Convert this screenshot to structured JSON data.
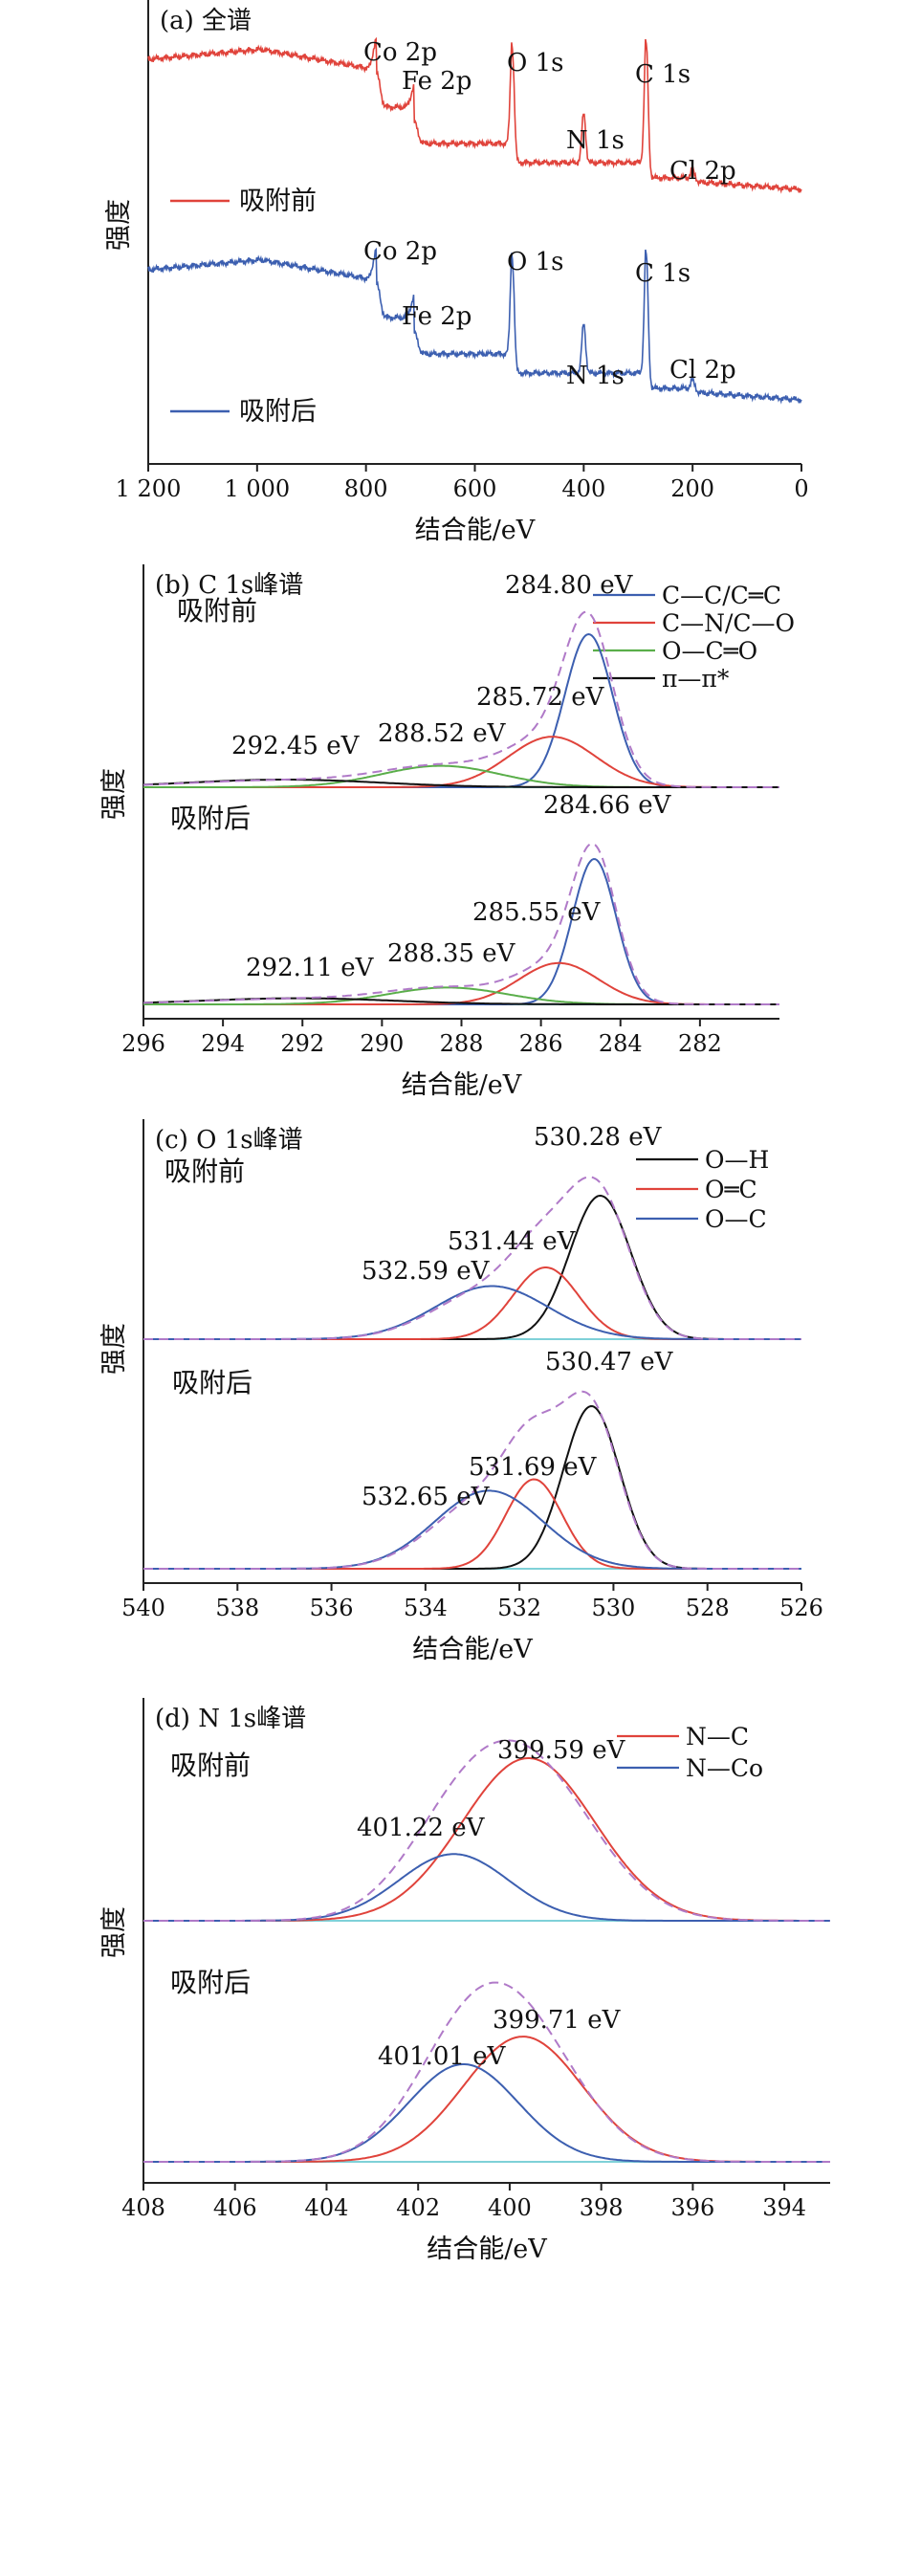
{
  "colors": {
    "red": "#e0433b",
    "blue": "#3c5fb0",
    "green": "#5aae4a",
    "black": "#111111",
    "envelope": "#b07ac8",
    "baseline": "#7fd1d8"
  },
  "chart_data": [
    {
      "id": "a",
      "type": "line",
      "title": "(a)  全谱",
      "xlabel": "结合能/eV",
      "ylabel": "强度",
      "xlim": [
        1200,
        0
      ],
      "xticks": [
        "1 200",
        "1 000",
        "800",
        "600",
        "400",
        "200",
        "0"
      ],
      "xtick_values": [
        1200,
        1000,
        800,
        600,
        400,
        200,
        0
      ],
      "series": [
        {
          "name": "吸附前",
          "color": "red",
          "peaks": [
            {
              "label": "Co 2p",
              "x": 780
            },
            {
              "label": "Fe 2p",
              "x": 711
            },
            {
              "label": "O 1s",
              "x": 531
            },
            {
              "label": "N 1s",
              "x": 400
            },
            {
              "label": "C 1s",
              "x": 285
            },
            {
              "label": "Cl 2p",
              "x": 199
            }
          ]
        },
        {
          "name": "吸附后",
          "color": "blue",
          "peaks": [
            {
              "label": "Co 2p",
              "x": 780
            },
            {
              "label": "Fe 2p",
              "x": 711
            },
            {
              "label": "O 1s",
              "x": 531
            },
            {
              "label": "N 1s",
              "x": 400
            },
            {
              "label": "C 1s",
              "x": 285
            },
            {
              "label": "Cl 2p",
              "x": 199
            }
          ]
        }
      ]
    },
    {
      "id": "b",
      "type": "line",
      "title": "(b)  C 1s峰谱",
      "xlabel": "结合能/eV",
      "ylabel": "强度",
      "xlim": [
        296,
        280
      ],
      "xticks": [
        "296",
        "294",
        "292",
        "290",
        "288",
        "286",
        "284",
        "282"
      ],
      "xtick_values": [
        296,
        294,
        292,
        290,
        288,
        286,
        284,
        282
      ],
      "legend": [
        {
          "label": "C—C/C═C",
          "color": "blue"
        },
        {
          "label": "C—N/C—O",
          "color": "red"
        },
        {
          "label": "O—C═O",
          "color": "green"
        },
        {
          "label": "π—π*",
          "color": "black"
        }
      ],
      "panels": [
        {
          "label": "吸附前",
          "components": [
            {
              "component": "C—C/C═C",
              "x": 284.8,
              "height": 1.0,
              "width": 0.6
            },
            {
              "component": "C—N/C—O",
              "x": 285.72,
              "height": 0.33,
              "width": 1.1
            },
            {
              "component": "O—C═O",
              "x": 288.52,
              "height": 0.14,
              "width": 1.5
            },
            {
              "component": "π—π*",
              "x": 292.45,
              "height": 0.05,
              "width": 2.4
            }
          ],
          "annotations": [
            "284.80 eV",
            "285.72 eV",
            "288.52 eV",
            "292.45 eV"
          ]
        },
        {
          "label": "吸附后",
          "components": [
            {
              "component": "C—C/C═C",
              "x": 284.66,
              "height": 0.95,
              "width": 0.55
            },
            {
              "component": "C—N/C—O",
              "x": 285.55,
              "height": 0.27,
              "width": 1.0
            },
            {
              "component": "O—C═O",
              "x": 288.35,
              "height": 0.11,
              "width": 1.5
            },
            {
              "component": "π—π*",
              "x": 292.11,
              "height": 0.04,
              "width": 2.4
            }
          ],
          "annotations": [
            "284.66 eV",
            "285.55 eV",
            "288.35 eV",
            "292.11 eV"
          ]
        }
      ]
    },
    {
      "id": "c",
      "type": "line",
      "title": "(c)  O 1s峰谱",
      "xlabel": "结合能/eV",
      "ylabel": "强度",
      "xlim": [
        540,
        526
      ],
      "xticks": [
        "540",
        "538",
        "536",
        "534",
        "532",
        "530",
        "528",
        "526"
      ],
      "xtick_values": [
        540,
        538,
        536,
        534,
        532,
        530,
        528,
        526
      ],
      "legend": [
        {
          "label": "O—H",
          "color": "black"
        },
        {
          "label": "O═C",
          "color": "red"
        },
        {
          "label": "O—C",
          "color": "blue"
        }
      ],
      "panels": [
        {
          "label": "吸附前",
          "components": [
            {
              "component": "O—H",
              "x": 530.28,
              "height": 1.0,
              "width": 0.65
            },
            {
              "component": "O═C",
              "x": 531.44,
              "height": 0.5,
              "width": 0.7
            },
            {
              "component": "O—C",
              "x": 532.59,
              "height": 0.37,
              "width": 1.2
            }
          ],
          "annotations": [
            "530.28 eV",
            "531.44 eV",
            "532.59 eV"
          ]
        },
        {
          "label": "吸附后",
          "components": [
            {
              "component": "O—H",
              "x": 530.47,
              "height": 1.0,
              "width": 0.6
            },
            {
              "component": "O═C",
              "x": 531.69,
              "height": 0.55,
              "width": 0.6
            },
            {
              "component": "O—C",
              "x": 532.65,
              "height": 0.48,
              "width": 1.15
            }
          ],
          "annotations": [
            "530.47 eV",
            "531.69 eV",
            "532.65 eV"
          ]
        }
      ]
    },
    {
      "id": "d",
      "type": "line",
      "title": "(d)  N 1s峰谱",
      "xlabel": "结合能/eV",
      "ylabel": "强度",
      "xlim": [
        408,
        393
      ],
      "xticks": [
        "408",
        "406",
        "404",
        "402",
        "400",
        "398",
        "396",
        "394"
      ],
      "xtick_values": [
        408,
        406,
        404,
        402,
        400,
        398,
        396,
        394
      ],
      "legend": [
        {
          "label": "N—C",
          "color": "red"
        },
        {
          "label": "N—Co",
          "color": "blue"
        }
      ],
      "panels": [
        {
          "label": "吸附前",
          "components": [
            {
              "component": "N—C",
              "x": 399.59,
              "height": 1.0,
              "width": 1.45
            },
            {
              "component": "N—Co",
              "x": 401.22,
              "height": 0.41,
              "width": 1.2
            }
          ],
          "annotations": [
            "399.59 eV",
            "401.22 eV"
          ]
        },
        {
          "label": "吸附后",
          "components": [
            {
              "component": "N—C",
              "x": 399.71,
              "height": 0.77,
              "width": 1.3
            },
            {
              "component": "N—Co",
              "x": 401.01,
              "height": 0.6,
              "width": 1.2
            }
          ],
          "annotations": [
            "399.71 eV",
            "401.01 eV"
          ]
        }
      ]
    }
  ]
}
